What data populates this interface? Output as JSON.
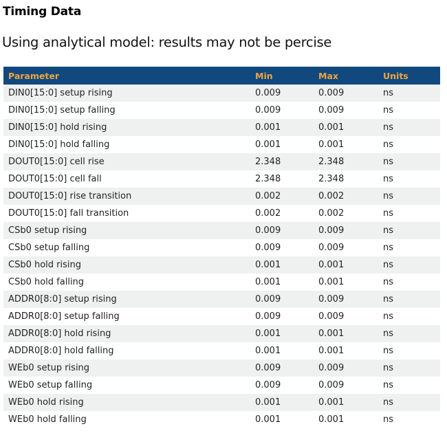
{
  "page": {
    "title": "Timing Data",
    "subtitle": "Using analytical model: results may not be percise"
  },
  "colors": {
    "header_bg": "#11497f",
    "header_text": "#f0a43c",
    "row_stripe_bg": "#eff1f1",
    "row_plain_bg": "#ffffff",
    "body_text": "#222222"
  },
  "table": {
    "columns": [
      "Parameter",
      "Min",
      "Max",
      "Units"
    ],
    "rows": [
      {
        "parameter": "DIN0[15:0] setup rising",
        "min": "0.009",
        "max": "0.009",
        "units": "ns"
      },
      {
        "parameter": "DIN0[15:0] setup falling",
        "min": "0.009",
        "max": "0.009",
        "units": "ns"
      },
      {
        "parameter": "DIN0[15:0] hold rising",
        "min": "0.001",
        "max": "0.001",
        "units": "ns"
      },
      {
        "parameter": "DIN0[15:0] hold falling",
        "min": "0.001",
        "max": "0.001",
        "units": "ns"
      },
      {
        "parameter": "DOUT0[15:0] cell rise",
        "min": "2.348",
        "max": "2.348",
        "units": "ns"
      },
      {
        "parameter": "DOUT0[15:0] cell fall",
        "min": "2.348",
        "max": "2.348",
        "units": "ns"
      },
      {
        "parameter": "DOUT0[15:0] rise transition",
        "min": "0.002",
        "max": "0.002",
        "units": "ns"
      },
      {
        "parameter": "DOUT0[15:0] fall transition",
        "min": "0.002",
        "max": "0.002",
        "units": "ns"
      },
      {
        "parameter": "CSb0 setup rising",
        "min": "0.009",
        "max": "0.009",
        "units": "ns"
      },
      {
        "parameter": "CSb0 setup falling",
        "min": "0.009",
        "max": "0.009",
        "units": "ns"
      },
      {
        "parameter": "CSb0 hold rising",
        "min": "0.001",
        "max": "0.001",
        "units": "ns"
      },
      {
        "parameter": "CSb0 hold falling",
        "min": "0.001",
        "max": "0.001",
        "units": "ns"
      },
      {
        "parameter": "ADDR0[8:0] setup rising",
        "min": "0.009",
        "max": "0.009",
        "units": "ns"
      },
      {
        "parameter": "ADDR0[8:0] setup falling",
        "min": "0.009",
        "max": "0.009",
        "units": "ns"
      },
      {
        "parameter": "ADDR0[8:0] hold rising",
        "min": "0.001",
        "max": "0.001",
        "units": "ns"
      },
      {
        "parameter": "ADDR0[8:0] hold falling",
        "min": "0.001",
        "max": "0.001",
        "units": "ns"
      },
      {
        "parameter": "WEb0 setup rising",
        "min": "0.009",
        "max": "0.009",
        "units": "ns"
      },
      {
        "parameter": "WEb0 setup falling",
        "min": "0.009",
        "max": "0.009",
        "units": "ns"
      },
      {
        "parameter": "WEb0 hold rising",
        "min": "0.001",
        "max": "0.001",
        "units": "ns"
      },
      {
        "parameter": "WEb0 hold falling",
        "min": "0.001",
        "max": "0.001",
        "units": "ns"
      }
    ]
  }
}
